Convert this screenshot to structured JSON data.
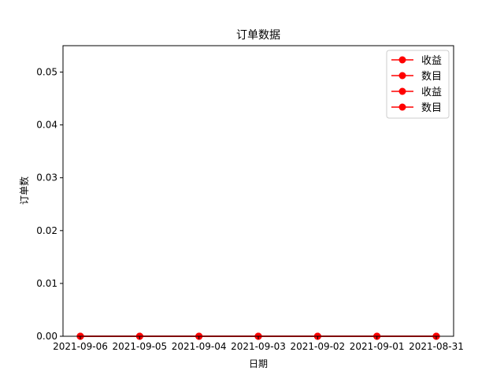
{
  "chart_data": {
    "type": "line",
    "title": "订单数据",
    "xlabel": "日期",
    "ylabel": "订单数",
    "categories": [
      "2021-09-06",
      "2021-09-05",
      "2021-09-04",
      "2021-09-03",
      "2021-09-02",
      "2021-09-01",
      "2021-08-31"
    ],
    "ylim": [
      0,
      0.055
    ],
    "yticks": [
      0.0,
      0.01,
      0.02,
      0.03,
      0.04,
      0.05
    ],
    "ytick_labels": [
      "0.00",
      "0.01",
      "0.02",
      "0.03",
      "0.04",
      "0.05"
    ],
    "grid": false,
    "legend_position": "top-right",
    "series": [
      {
        "name": "收益",
        "color": "#ff0000",
        "marker": "circle",
        "values": [
          0,
          0,
          0,
          0,
          0,
          0,
          0
        ]
      },
      {
        "name": "数目",
        "color": "#ff0000",
        "marker": "circle",
        "values": [
          0,
          0,
          0,
          0,
          0,
          0,
          0
        ]
      },
      {
        "name": "收益",
        "color": "#ff0000",
        "marker": "circle",
        "values": [
          0,
          0,
          0,
          0,
          0,
          0,
          0
        ]
      },
      {
        "name": "数目",
        "color": "#ff0000",
        "marker": "circle",
        "values": [
          0,
          0,
          0,
          0,
          0,
          0,
          0
        ]
      }
    ]
  }
}
